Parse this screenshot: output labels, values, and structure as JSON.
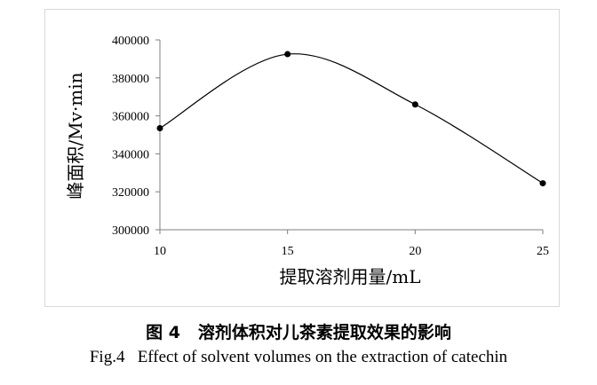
{
  "chart_data": {
    "type": "line",
    "x": [
      10,
      15,
      20,
      25
    ],
    "values": [
      353500,
      392500,
      366000,
      324500
    ],
    "x_ticks": [
      "10",
      "15",
      "20",
      "25"
    ],
    "y_ticks": [
      "300000",
      "320000",
      "340000",
      "360000",
      "380000",
      "400000"
    ],
    "xlim": [
      10,
      25
    ],
    "ylim": [
      300000,
      400000
    ],
    "xlabel": "提取溶剂用量/mL",
    "ylabel": "峰面积/Mv·min",
    "smooth": true,
    "grid": false,
    "colors": {
      "line": "#000000",
      "marker": "#000000",
      "axis": "#7f7f7f"
    }
  },
  "caption": {
    "zh_label": "图 4",
    "zh_text": "溶剂体积对儿茶素提取效果的影响",
    "en_label": "Fig.4",
    "en_text": "Effect of solvent volumes on the extraction of catechin"
  }
}
